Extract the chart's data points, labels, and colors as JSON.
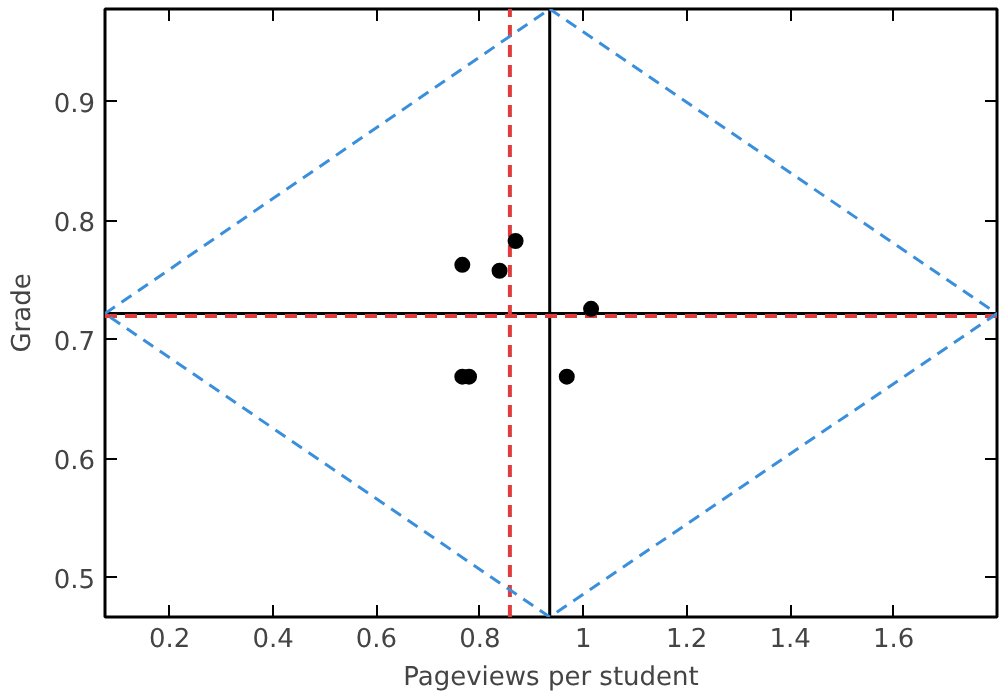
{
  "chart_data": {
    "type": "scatter",
    "xlabel": "Pageviews per student",
    "ylabel": "Grade",
    "xlim": [
      0.075,
      1.8
    ],
    "ylim": [
      0.467,
      0.978
    ],
    "xticks": [
      0.2,
      0.4,
      0.6,
      0.8,
      1.0,
      1.2,
      1.4,
      1.6
    ],
    "yticks": [
      0.5,
      0.6,
      0.7,
      0.8,
      0.9
    ],
    "grid": false,
    "series": [
      {
        "color": "#000000",
        "marker": "circle",
        "x": [
          0.766,
          0.838,
          0.869,
          1.015,
          0.766,
          0.779,
          0.968
        ],
        "values": [
          0.763,
          0.758,
          0.783,
          0.726,
          0.669,
          0.669,
          0.669
        ]
      },
      {
        "type": "line",
        "color": "#3a8fdc",
        "line_style": "dashed",
        "x": [
          0.075,
          0.935
        ],
        "values": [
          0.722,
          0.978
        ]
      },
      {
        "type": "line",
        "color": "#3a8fdc",
        "line_style": "dashed",
        "x": [
          0.935,
          1.8
        ],
        "values": [
          0.978,
          0.722
        ]
      },
      {
        "type": "line",
        "color": "#3a8fdc",
        "line_style": "dashed",
        "x": [
          1.8,
          0.935
        ],
        "values": [
          0.722,
          0.467
        ]
      },
      {
        "type": "line",
        "color": "#3a8fdc",
        "line_style": "dashed",
        "x": [
          0.935,
          0.075
        ],
        "values": [
          0.467,
          0.722
        ]
      }
    ],
    "ref_lines": [
      {
        "axis": "x",
        "value": 0.935,
        "label": null,
        "color": "#000000",
        "line_style": "solid"
      },
      {
        "axis": "y",
        "value": 0.722,
        "label": null,
        "color": "#000000",
        "line_style": "solid"
      },
      {
        "axis": "x",
        "value": 0.858,
        "label": null,
        "color": "#e03c3c",
        "line_style": "dashed"
      },
      {
        "axis": "y",
        "value": 0.72,
        "label": null,
        "color": "#e03c3c",
        "line_style": "dashed"
      }
    ]
  }
}
